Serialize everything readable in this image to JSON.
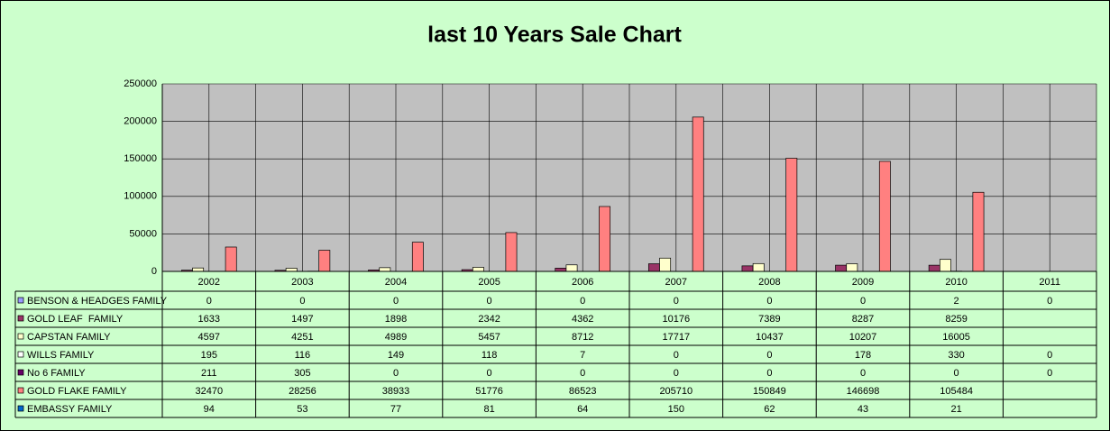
{
  "chart_data": {
    "type": "bar",
    "title": "last 10 Years Sale Chart",
    "categories": [
      "2002",
      "2003",
      "2004",
      "2005",
      "2006",
      "2007",
      "2008",
      "2009",
      "2010",
      "2011"
    ],
    "ylim": [
      0,
      250000
    ],
    "yticks": [
      0,
      50000,
      100000,
      150000,
      200000,
      250000
    ],
    "grid": true,
    "series": [
      {
        "name": "BENSON & HEADGES FAMILY",
        "color": "#9999ff",
        "values": [
          0,
          0,
          0,
          0,
          0,
          0,
          0,
          0,
          2,
          0
        ]
      },
      {
        "name": "GOLD LEAF  FAMILY",
        "color": "#993366",
        "values": [
          1633,
          1497,
          1898,
          2342,
          4362,
          10176,
          7389,
          8287,
          8259,
          null
        ]
      },
      {
        "name": "CAPSTAN FAMILY",
        "color": "#ffffcc",
        "values": [
          4597,
          4251,
          4989,
          5457,
          8712,
          17717,
          10437,
          10207,
          16005,
          null
        ]
      },
      {
        "name": "WILLS FAMILY",
        "color": "#ffffff",
        "values": [
          195,
          116,
          149,
          118,
          7,
          0,
          0,
          178,
          330,
          0
        ]
      },
      {
        "name": "No 6 FAMILY",
        "color": "#660066",
        "values": [
          211,
          305,
          0,
          0,
          0,
          0,
          0,
          0,
          0,
          0
        ]
      },
      {
        "name": "GOLD FLAKE FAMILY",
        "color": "#ff8080",
        "values": [
          32470,
          28256,
          38933,
          51776,
          86523,
          205710,
          150849,
          146698,
          105484,
          null
        ]
      },
      {
        "name": "EMBASSY FAMILY",
        "color": "#0066cc",
        "values": [
          94,
          53,
          77,
          81,
          64,
          150,
          62,
          43,
          21,
          null
        ]
      }
    ]
  }
}
